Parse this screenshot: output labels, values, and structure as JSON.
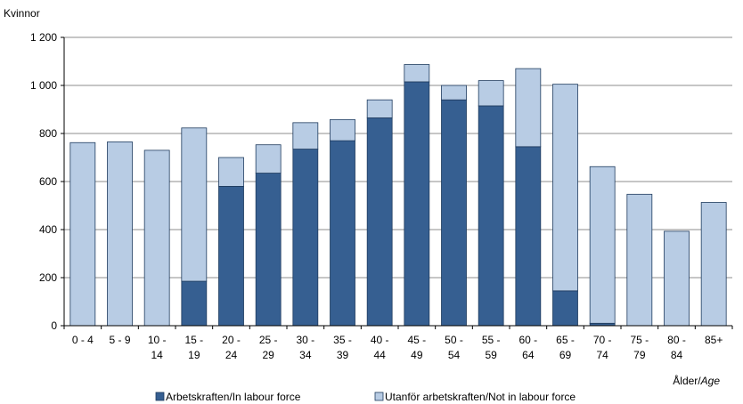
{
  "chart_data": {
    "type": "bar",
    "stacked": true,
    "ylabel": "Kvinnor",
    "xlabel": "Ålder/",
    "xlabel_italic": "Age",
    "ylim": [
      0,
      1200
    ],
    "yticks": [
      0,
      200,
      400,
      600,
      800,
      1000,
      1200
    ],
    "ytick_labels": [
      "0",
      "200",
      "400",
      "600",
      "800",
      "1 000",
      "1 200"
    ],
    "grid": "horizontal",
    "legend_position": "bottom",
    "categories": [
      [
        "0 - 4"
      ],
      [
        "5 - 9"
      ],
      [
        "10 -",
        "14"
      ],
      [
        "15 -",
        "19"
      ],
      [
        "20 -",
        "24"
      ],
      [
        "25 -",
        "29"
      ],
      [
        "30 -",
        "34"
      ],
      [
        "35 -",
        "39"
      ],
      [
        "40 -",
        "44"
      ],
      [
        "45 -",
        "49"
      ],
      [
        "50 -",
        "54"
      ],
      [
        "55 -",
        "59"
      ],
      [
        "60 -",
        "64"
      ],
      [
        "65 -",
        "69"
      ],
      [
        "70 -",
        "74"
      ],
      [
        "75 -",
        "79"
      ],
      [
        "80 -",
        "84"
      ],
      [
        "85+"
      ]
    ],
    "series": [
      {
        "name": "Arbetskraften/In labour force",
        "color": "#365f91",
        "values": [
          0,
          0,
          0,
          185,
          580,
          635,
          735,
          770,
          865,
          1015,
          940,
          915,
          745,
          145,
          10,
          0,
          0,
          0
        ]
      },
      {
        "name": "Utanför arbetskraften/Not in labour force",
        "color": "#b8cce4",
        "values": [
          762,
          765,
          730,
          638,
          120,
          118,
          110,
          88,
          75,
          72,
          60,
          105,
          325,
          860,
          652,
          547,
          393,
          513
        ]
      }
    ]
  }
}
